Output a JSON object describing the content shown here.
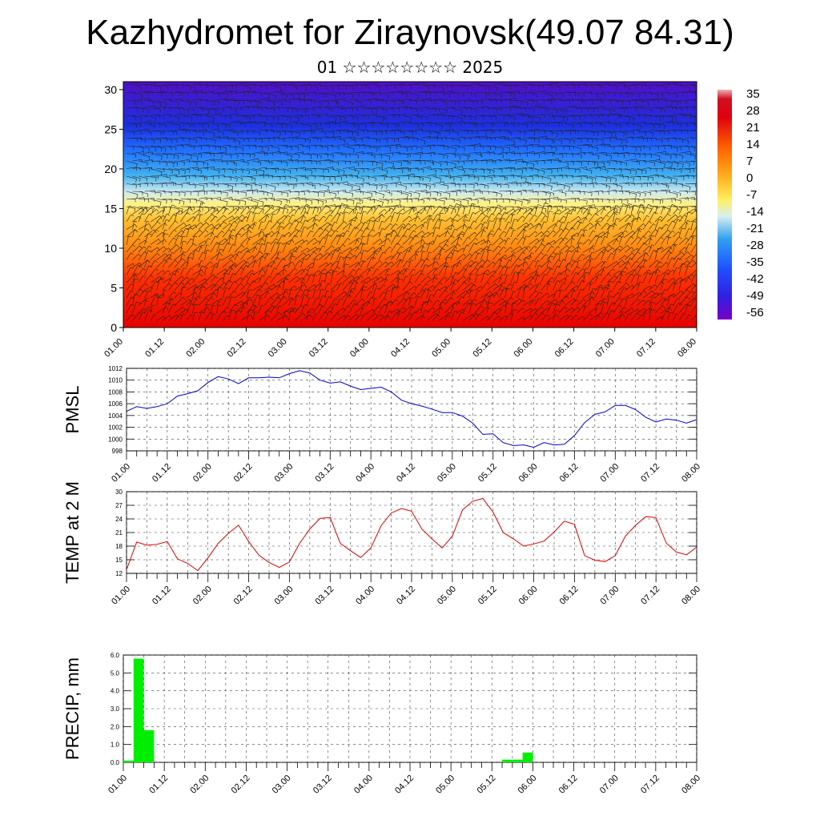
{
  "header": {
    "title": "Kazhydromet for Ziraynovsk(49.07 84.31)",
    "subtitle": "01 ☆☆☆☆☆☆☆☆ 2025"
  },
  "time_ticks": [
    "01.00",
    "01.12",
    "02.00",
    "02.12",
    "03.00",
    "03.12",
    "04.00",
    "04.12",
    "05.00",
    "05.12",
    "06.00",
    "06.12",
    "07.00",
    "07.12",
    "08.00"
  ],
  "colors": {
    "pmsl_line": "#0000cc",
    "temp_line": "#dd0000",
    "precip_bar": "#00ee00"
  },
  "chart_data": [
    {
      "type": "heatmap",
      "title": "",
      "xlabel": "",
      "ylabel": "",
      "ylim": [
        0,
        31
      ],
      "y_ticks": [
        0,
        5,
        10,
        15,
        20,
        25,
        30
      ],
      "x_categories": [
        "01.00",
        "01.12",
        "02.00",
        "02.12",
        "03.00",
        "03.12",
        "04.00",
        "04.12",
        "05.00",
        "05.12",
        "06.00",
        "06.12",
        "07.00",
        "07.12",
        "08.00"
      ],
      "colorbar": {
        "labels": [
          "35",
          "28",
          "21",
          "14",
          "7",
          "0",
          "-7",
          "-14",
          "-21",
          "-28",
          "-35",
          "-42",
          "-49",
          "-56"
        ]
      },
      "description_levels": [
        0,
        31
      ],
      "wind_barbs": true
    },
    {
      "type": "line",
      "ylabel": "PMSL",
      "ylim": [
        998,
        1012
      ],
      "y_ticks": [
        998,
        1000,
        1002,
        1004,
        1006,
        1008,
        1010,
        1012
      ],
      "x_hours": [
        0,
        3,
        6,
        9,
        12,
        15,
        18,
        21,
        24,
        27,
        30,
        33,
        36,
        39,
        42,
        45,
        48,
        51,
        54,
        57,
        60,
        63,
        66,
        69,
        72,
        75,
        78,
        81,
        84,
        87,
        90,
        93,
        96,
        99,
        102,
        105,
        108,
        111,
        114,
        117,
        120,
        123,
        126,
        129,
        132,
        135,
        138,
        141,
        144,
        147,
        150,
        153,
        156,
        159,
        162,
        165,
        168
      ],
      "series": [
        {
          "values": [
            1004.7,
            1005.5,
            1005.2,
            1005.5,
            1006.0,
            1007.3,
            1007.7,
            1008.2,
            1009.6,
            1010.6,
            1010.2,
            1009.4,
            1010.4,
            1010.4,
            1010.5,
            1010.4,
            1011.1,
            1011.6,
            1011.2,
            1010.0,
            1009.5,
            1009.7,
            1009.0,
            1008.4,
            1008.6,
            1008.8,
            1008.0,
            1006.6,
            1006.0,
            1005.6,
            1005.1,
            1004.5,
            1004.5,
            1003.9,
            1002.7,
            1000.8,
            1000.9,
            999.4,
            998.9,
            999.0,
            998.6,
            999.4,
            999.0,
            999.1,
            1000.6,
            1002.8,
            1004.2,
            1004.6,
            1005.7,
            1005.7,
            1005.0,
            1003.7,
            1002.9,
            1003.4,
            1003.2,
            1002.7,
            1003.3
          ]
        }
      ]
    },
    {
      "type": "line",
      "ylabel": "TEMP at 2 M",
      "ylim": [
        12,
        30
      ],
      "y_ticks": [
        12,
        15,
        18,
        21,
        24,
        27,
        30
      ],
      "x_hours": [
        0,
        3,
        6,
        9,
        12,
        15,
        18,
        21,
        24,
        27,
        30,
        33,
        36,
        39,
        42,
        45,
        48,
        51,
        54,
        57,
        60,
        63,
        66,
        69,
        72,
        75,
        78,
        81,
        84,
        87,
        90,
        93,
        96,
        99,
        102,
        105,
        108,
        111,
        114,
        117,
        120,
        123,
        126,
        129,
        132,
        135,
        138,
        141,
        144,
        147,
        150,
        153,
        156,
        159,
        162,
        165,
        168
      ],
      "series": [
        {
          "values": [
            12.8,
            18.9,
            18.2,
            18.4,
            19.0,
            15.2,
            14.2,
            12.6,
            15.4,
            18.6,
            20.8,
            22.6,
            19.0,
            16.0,
            14.4,
            13.3,
            14.5,
            18.6,
            21.8,
            24.1,
            24.3,
            18.6,
            17.0,
            15.5,
            17.6,
            22.5,
            25.3,
            26.3,
            25.7,
            21.8,
            19.6,
            17.6,
            20.2,
            26.0,
            27.9,
            28.5,
            25.5,
            21.0,
            19.6,
            18.0,
            18.5,
            19.1,
            21.1,
            23.5,
            22.8,
            15.9,
            14.9,
            14.6,
            15.9,
            20.2,
            22.6,
            24.5,
            24.3,
            18.7,
            16.7,
            16.1,
            17.8
          ]
        }
      ]
    },
    {
      "type": "bar",
      "ylabel": "PRECIP, mm",
      "ylim": [
        0,
        6
      ],
      "y_ticks": [
        "0.0",
        "1.0",
        "2.0",
        "3.0",
        "4.0",
        "5.0",
        "6.0"
      ],
      "x_hours": [
        3,
        6,
        9,
        114,
        117,
        120
      ],
      "values": [
        0.1,
        5.8,
        1.8,
        0.15,
        0.15,
        0.55
      ]
    }
  ]
}
